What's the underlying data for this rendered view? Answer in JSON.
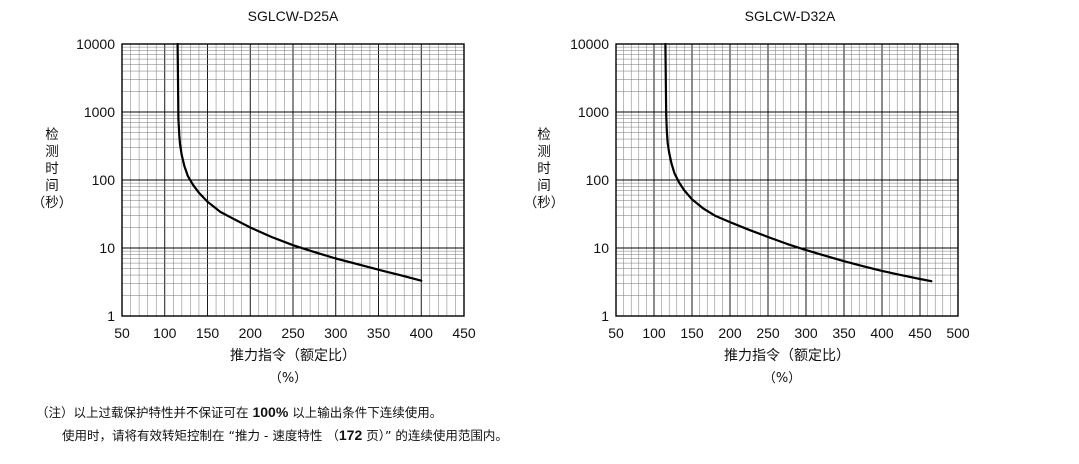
{
  "chart_data": [
    {
      "type": "line",
      "title": "SGLCW-D25A",
      "xlabel": "推力指令（额定比）",
      "xlabel_unit": "（%）",
      "ylabel": [
        "检",
        "测",
        "时",
        "间",
        "（秒）"
      ],
      "x_scale": "linear",
      "y_scale": "log",
      "xlim": [
        50,
        450
      ],
      "ylim": [
        1,
        10000
      ],
      "x_ticks": [
        "50",
        "100",
        "150",
        "200",
        "250",
        "300",
        "350",
        "400",
        "450"
      ],
      "y_ticks": [
        "1",
        "10",
        "100",
        "1000",
        "10000"
      ],
      "grid": true,
      "series": [
        {
          "x": [
            115,
            115.5,
            116,
            117,
            118,
            120,
            123,
            127,
            133,
            140,
            150,
            165,
            180,
            200,
            225,
            250,
            275,
            300,
            325,
            350,
            375,
            400
          ],
          "y": [
            10000,
            3000,
            800,
            450,
            330,
            230,
            160,
            115,
            85,
            65,
            48,
            34,
            27,
            20,
            14.5,
            11,
            8.7,
            7,
            5.8,
            4.8,
            4,
            3.3
          ]
        }
      ]
    },
    {
      "type": "line",
      "title": "SGLCW-D32A",
      "xlabel": "推力指令（额定比）",
      "xlabel_unit": "（%）",
      "ylabel": [
        "检",
        "测",
        "时",
        "间",
        "（秒）"
      ],
      "x_scale": "linear",
      "y_scale": "log",
      "xlim": [
        50,
        500
      ],
      "ylim": [
        1,
        10000
      ],
      "x_ticks": [
        "50",
        "100",
        "150",
        "200",
        "250",
        "300",
        "350",
        "400",
        "450",
        "500"
      ],
      "y_ticks": [
        "1",
        "10",
        "100",
        "1000",
        "10000"
      ],
      "grid": true,
      "series": [
        {
          "x": [
            115,
            115.5,
            116,
            117,
            118,
            120,
            123,
            127,
            133,
            140,
            150,
            165,
            180,
            200,
            225,
            250,
            275,
            300,
            325,
            350,
            375,
            400,
            425,
            450,
            465
          ],
          "y": [
            10000,
            3000,
            900,
            500,
            350,
            250,
            175,
            125,
            92,
            70,
            52,
            38,
            30,
            24,
            18.5,
            14.5,
            11.5,
            9.3,
            7.7,
            6.4,
            5.4,
            4.6,
            4,
            3.5,
            3.25
          ]
        }
      ]
    }
  ],
  "notes": {
    "line1_pre": "（注）以上过载保护特性并不保证可在 ",
    "line1_strong": "100%",
    "line1_post": " 以上输出条件下连续使用。",
    "line2_pre": "使用时，请将有效转矩控制在 “推力 - 速度特性 （",
    "line2_strong": "172",
    "line2_post": " 页）” 的连续使用范围内。"
  }
}
